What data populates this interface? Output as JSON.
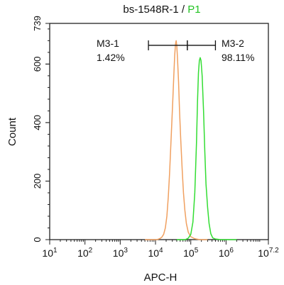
{
  "chart_data": {
    "type": "line",
    "title_main": "bs-1548R-1 / ",
    "title_accent": "P1",
    "title_accent_color": "#22c322",
    "xlabel": "APC-H",
    "ylabel": "Count",
    "x_scale": "log",
    "xlim": [
      10,
      15848931.92
    ],
    "ylim": [
      0,
      739
    ],
    "x_ticks": [
      {
        "value": 10,
        "base": "10",
        "exp": "1"
      },
      {
        "value": 100,
        "base": "10",
        "exp": "2"
      },
      {
        "value": 1000,
        "base": "10",
        "exp": "3"
      },
      {
        "value": 10000,
        "base": "10",
        "exp": "4"
      },
      {
        "value": 100000,
        "base": "10",
        "exp": "5"
      },
      {
        "value": 1000000,
        "base": "10",
        "exp": "6"
      },
      {
        "value": 15848931.92,
        "base": "10",
        "exp": "7.2"
      }
    ],
    "y_ticks": [
      {
        "value": 0,
        "label": "0"
      },
      {
        "value": 200,
        "label": "200"
      },
      {
        "value": 400,
        "label": "400"
      },
      {
        "value": 600,
        "label": "600"
      },
      {
        "value": 739,
        "label": "739"
      }
    ],
    "gates": [
      {
        "label": "M3-1",
        "percent": "1.42%",
        "x_start": 6300,
        "x_end": 80000
      },
      {
        "label": "M3-2",
        "percent": "98.11%",
        "x_start": 80000,
        "x_end": 500000
      }
    ],
    "gate_y": 664,
    "series": [
      {
        "color": "#f0a060",
        "points": [
          [
            5000,
            0
          ],
          [
            11000,
            0
          ],
          [
            13000,
            3
          ],
          [
            15000,
            8
          ],
          [
            17000,
            18
          ],
          [
            19000,
            40
          ],
          [
            21000,
            80
          ],
          [
            23000,
            145
          ],
          [
            25000,
            225
          ],
          [
            27000,
            315
          ],
          [
            29000,
            400
          ],
          [
            31000,
            480
          ],
          [
            33000,
            560
          ],
          [
            35000,
            630
          ],
          [
            37000,
            670
          ],
          [
            38500,
            680
          ],
          [
            40000,
            665
          ],
          [
            42000,
            620
          ],
          [
            45000,
            540
          ],
          [
            48000,
            440
          ],
          [
            52000,
            340
          ],
          [
            57000,
            240
          ],
          [
            62000,
            160
          ],
          [
            68000,
            100
          ],
          [
            75000,
            55
          ],
          [
            85000,
            25
          ],
          [
            100000,
            10
          ],
          [
            130000,
            3
          ],
          [
            180000,
            0
          ],
          [
            300000,
            0
          ]
        ]
      },
      {
        "color": "#33dd33",
        "points": [
          [
            40000,
            0
          ],
          [
            70000,
            0
          ],
          [
            85000,
            5
          ],
          [
            100000,
            18
          ],
          [
            115000,
            60
          ],
          [
            130000,
            160
          ],
          [
            145000,
            330
          ],
          [
            155000,
            470
          ],
          [
            165000,
            570
          ],
          [
            175000,
            612
          ],
          [
            185000,
            622
          ],
          [
            195000,
            612
          ],
          [
            210000,
            560
          ],
          [
            230000,
            440
          ],
          [
            250000,
            300
          ],
          [
            270000,
            190
          ],
          [
            300000,
            110
          ],
          [
            330000,
            55
          ],
          [
            370000,
            20
          ],
          [
            420000,
            6
          ],
          [
            500000,
            2
          ],
          [
            700000,
            0
          ],
          [
            2000000,
            0
          ]
        ]
      }
    ]
  }
}
